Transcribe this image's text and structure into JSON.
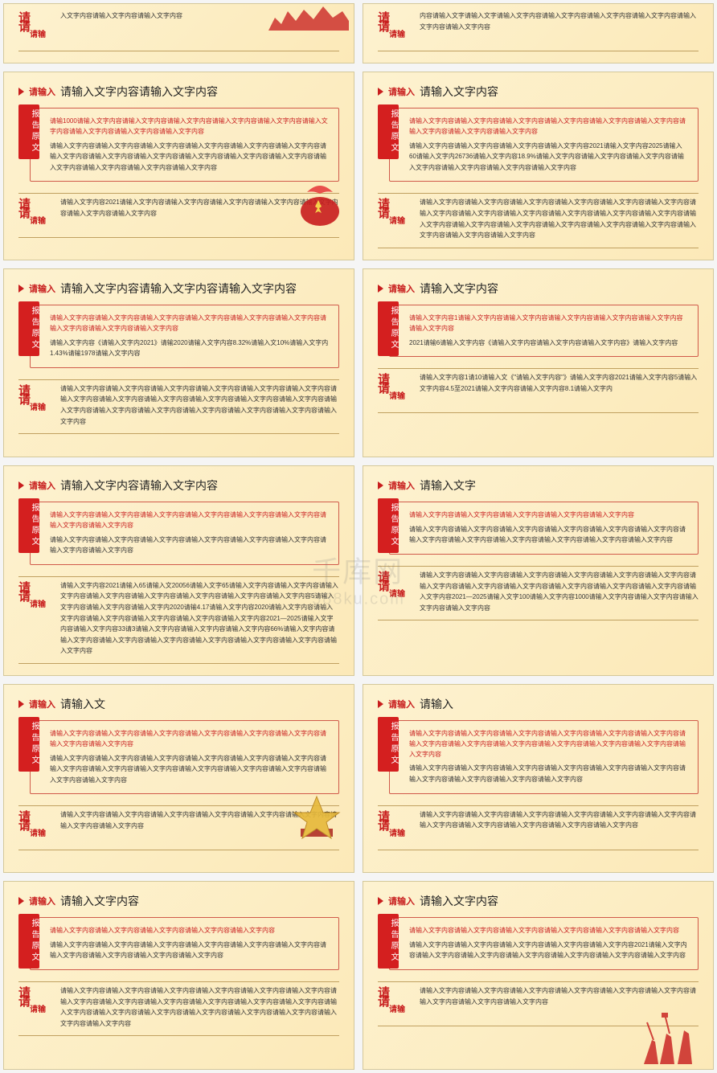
{
  "colors": {
    "accent": "#c81e1e",
    "tag_bg": "#d41f1f",
    "border": "#d05a4a",
    "slide_bg_a": "#fdf2d0",
    "slide_bg_b": "#fce9b8",
    "rule": "#c0a060",
    "text": "#333333"
  },
  "watermark": {
    "line1": "千库网",
    "line2": "588ku.com"
  },
  "tag_label": "报告原文",
  "qing": {
    "l1": "请",
    "l2": "请",
    "l3": "请输"
  },
  "slides": [
    {
      "row": "top-partial",
      "col": 0,
      "pre": "请输入",
      "title": "",
      "bottom": "入文字内容请输入文字内容请输入文字内容",
      "deco": "skyline"
    },
    {
      "row": "top-partial",
      "col": 1,
      "pre": "请输入",
      "title": "",
      "bottom": "内容请输入文字请输入文字请输入文字内容请输入文字内容请输入文字内容请输入文字内容请输入文字内容请输入文字内容"
    },
    {
      "pre": "请输入",
      "title": "请输入文字内容请输入文字内容",
      "red": "请输1000请输入文字内容请输入文字内容请输入文字内容请输入文字内容请输入文字内容请输入文字内容请输入文字内容请输入文字内容请输入文字内容",
      "body": "请输入文字内容请输入文字内容请输入文字内容请输入文字内容请输入文字内容请输入文字内容请输入文字内容请输入文字内容请输入文字内容请输入文字内容请输入文字内容请输入文字内容请输入文字内容请输入文字内容请输入文字内容请输入文字内容",
      "bottom": "请输入文字内容2021请输入文字内容请输入文字内容请输入文字内容请输入文字内容请输入文字内容请输入文字内容请输入文字内容",
      "deco": "emblem"
    },
    {
      "pre": "请输入",
      "title": "请输入文字内容",
      "red": "请输入文字内容请输入文字内容请输入文字内容请输入文字内容请输入文字内容请输入文字内容请输入文字内容请输入文字内容请输入文字内容",
      "body": "请输入文字内容请输入文字内容请输入文字内容请输入文字内容2021请输入文字内容2025请输入60请输入文字内26736请输入文字内容18.9%请输入文字内容请输入文字内容请输入文字内容请输入文字内容请输入文字内容请输入文字内容请输入文字内容",
      "bottom": "请输入文字内容请输入文字内容请输入文字内容请输入文字内容请输入文字内容请输入文字内容请输入文字内容请输入文字内容请输入文字内容请输入文字内容请输入文字内容请输入文字内容请输入文字内容请输入文字内容请输入文字内容请输入文字内容请输入文字内容请输入文字内容请输入文字内容请输入文字内容请输入文字内容"
    },
    {
      "pre": "请输入",
      "title": "请输入文字内容请输入文字内容请输入文字内容",
      "red": "请输入文字内容请输入文字内容请输入文字内容请输入文字内容请输入文字内容请输入文字内容请输入文字内容请输入文字内容请输入文字内容",
      "body": "请输入文字内容《请输入文字内2021》请输2020请输入文字内容8.32%请输入文10%请输入文字内1.43%请输1978请输入文字内容",
      "bottom": "请输入文字内容请输入文字内容请输入文字内容请输入文字内容请输入文字内容请输入文字内容请输入文字内容请输入文字内容请输入文字内容请输入文字内容请输入文字内容请输入文字内容请输入文字内容请输入文字内容请输入文字内容请输入文字内容请输入文字内容请输入文字内容请输入文字内容"
    },
    {
      "pre": "请输入",
      "title": "请输入文字内容",
      "red": "请输入文字内容1请输入文字内容请输入文字内容请输入文字内容请输入文字内容请输入文字内容请输入文字内容",
      "body": "2021请输6请输入文字内容《请输入文字内容请输入文字内容请输入文字内容》请输入文字内容",
      "bottom": "请输入文字内容1请10请输入文《\"请输入文字内容\"》请输入文字内容2021请输入文字内容5请输入文字内容4.5至2021请输入文字内容请输入文字内容8.1请输入文字内"
    },
    {
      "pre": "请输入",
      "title": "请输入文字内容请输入文字内容",
      "red": "请输入文字内容请输入文字内容请输入文字内容请输入文字内容请输入文字内容请输入文字内容请输入文字内容请输入文字内容",
      "body": "请输入文字内容请输入文字内容请输入文字内容请输入文字内容请输入文字内容请输入文字内容请输入文字内容请输入文字内容",
      "bottom": "请输入文字内容2021请输入65请输入文20056请输入文字65请输入文字内容请输入文字内容请输入文字内容请输入文字内容请输入文字内容请输入文字内容请输入文字内容请输入文字内容5请输入文字内容请输入文字内容请输入文字内2020请输4.17请输入文字内容2020请输入文字内容请输入文字内容请输入文字内容请输入文字内容请输入文字内容请输入文字内容2021―2025请输入文字内容请输入文字内容33请3请输入文字内容请输入文字内容请输入文字内容66%请输入文字内容请输入文字内容请输入文字内容请输入文字内容请输入文字内容请输入文字内容请输入文字内容请输入文字内容"
    },
    {
      "pre": "请输入",
      "title": "请输入文字",
      "red": "请输入文字内容请输入文字内容请输入文字内容请输入文字内容请输入文字内容",
      "body": "请输入文字内容请输入文字内容请输入文字内容请输入文字内容请输入文字内容请输入文字内容请输入文字内容请输入文字内容请输入文字内容请输入文字内容请输入文字内容请输入文字内容",
      "bottom": "请输入文字内容请输入文字内容请输入文字内容请输入文字内容请输入文字内容请输入文字内容请输入文字内容请输入文字内容请输入文字内容请输入文字内容请输入文字内容请输入文字内容请输入文字内容2021―2025请输入文字100请输入文字内容1000请输入文字内容请输入文字内容请输入文字内容请输入文字内容"
    },
    {
      "pre": "请输入",
      "title": "请输入文",
      "red": "请输入文字内容请输入文字内容请输入文字内容请输入文字内容请输入文字内容请输入文字内容请输入文字内容请输入文字内容",
      "body": "请输入文字内容请输入文字内容请输入文字内容请输入文字内容请输入文字内容请输入文字内容请输入文字内容请输入文字内容请输入文字内容请输入文字内容请输入文字内容请输入文字内容请输入文字内容请输入文字内容",
      "bottom": "请输入文字内容请输入文字内容请输入文字内容请输入文字内容请输入文字内容请输入文字内容请输入文字内容请输入文字内容",
      "deco": "star"
    },
    {
      "pre": "请输入",
      "title": "请输入",
      "red": "请输入文字内容请输入文字内容请输入文字内容请输入文字内容请输入文字内容请输入文字内容请输入文字内容请输入文字内容请输入文字内容请输入文字内容请输入文字内容请输入文字内容请输入文字内容",
      "body": "请输入文字内容请输入文字内容请输入文字内容请输入文字内容请输入文字内容请输入文字内容请输入文字内容请输入文字内容请输入文字内容请输入文字内容",
      "bottom": "请输入文字内容请输入文字内容请输入文字内容请输入文字内容请输入文字内容请输入文字内容请输入文字内容请输入文字内容请输入文字内容请输入文字内容请输入文字内容"
    },
    {
      "pre": "请输入",
      "title": "请输入文字内容",
      "red": "请输入文字内容请输入文字内容请输入文字内容请输入文字内容请输入文字内容",
      "body": "请输入文字内容请输入文字内容请输入文字内容请输入文字内容请输入文字内容请输入文字内容请输入文字内容请输入文字内容请输入文字内容请输入文字内容",
      "bottom": "请输入文字内容请输入文字内容请输入文字内容请输入文字内容请输入文字内容请输入文字内容请输入文字内容请输入文字内容请输入文字内容请输入文字内容请输入文字内容请输入文字内容请输入文字内容请输入文字内容请输入文字内容请输入文字内容请输入文字内容请输入文字内容请输入文字内容请输入文字内容"
    },
    {
      "pre": "请输入",
      "title": "请输入文字内容",
      "red": "请输入文字内容请输入文字内容请输入文字内容请输入文字内容请输入文字内容请输入文字内容",
      "body": "请输入文字内容请输入文字内容请输入文字内容请输入文字内容请输入文字内容2021请输入文字内容请输入文字内容请输入文字内容请输入文字内容请输入文字内容请输入文字内容请输入文字内容",
      "bottom": "请输入文字内容请输入文字内容请输入文字内容请输入文字内容请输入文字内容请输入文字内容请输入文字内容请输入文字内容请输入文字内容",
      "deco": "soldiers"
    }
  ]
}
